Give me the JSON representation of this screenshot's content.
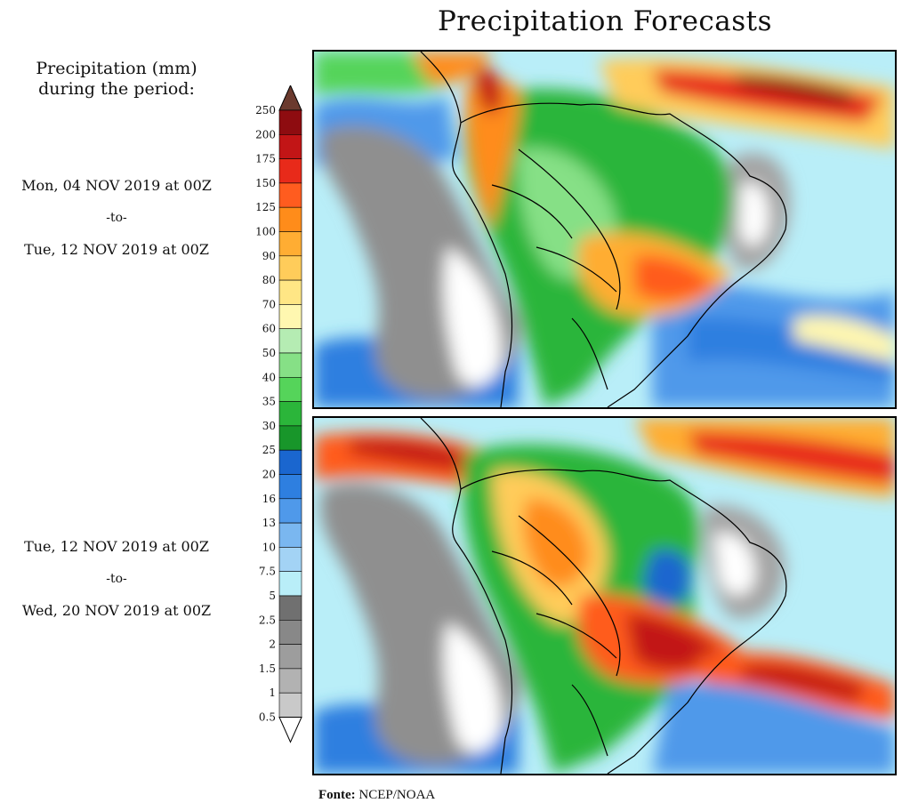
{
  "title": "Precipitation Forecasts",
  "legend": {
    "heading_line1": "Precipitation (mm)",
    "heading_line2": "during the period:",
    "levels": [
      "0.5",
      "1",
      "1.5",
      "2",
      "2.5",
      "5",
      "7.5",
      "10",
      "13",
      "16",
      "20",
      "25",
      "30",
      "35",
      "40",
      "50",
      "60",
      "70",
      "80",
      "90",
      "100",
      "125",
      "150",
      "175",
      "200",
      "250"
    ],
    "colors": [
      "#c9c9c9",
      "#b2b2b2",
      "#9d9d9d",
      "#888888",
      "#707070",
      "#b9eef8",
      "#a3d3f5",
      "#7ab7f0",
      "#4f99ea",
      "#2e7fe0",
      "#1a66cf",
      "#18962a",
      "#2bb53a",
      "#55d45a",
      "#86e086",
      "#b5ecb3",
      "#fff7b0",
      "#ffe685",
      "#ffcc5a",
      "#ffad33",
      "#ff8c1a",
      "#ff5c1f",
      "#e82a1a",
      "#c21516",
      "#8e0c10",
      "#6b3a2e"
    ]
  },
  "periods": [
    {
      "start": "Mon, 04 NOV 2019 at 00Z",
      "sep": "-to-",
      "end": "Tue, 12 NOV 2019 at 00Z"
    },
    {
      "start": "Tue, 12 NOV 2019 at 00Z",
      "sep": "-to-",
      "end": "Wed, 20 NOV 2019 at 00Z"
    }
  ],
  "source": {
    "label": "Fonte:",
    "value": "NCEP/NOAA"
  }
}
